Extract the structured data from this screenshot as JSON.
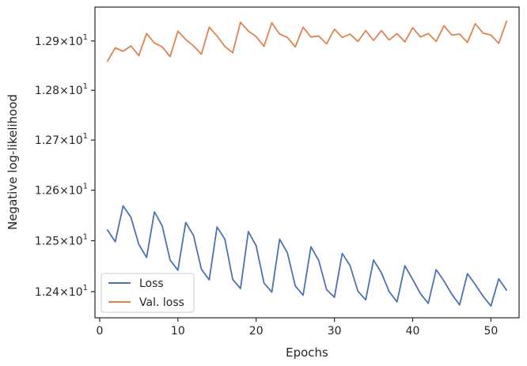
{
  "chart_data": {
    "type": "line",
    "title": "",
    "xlabel": "Epochs",
    "ylabel": "Negative log-likelihood",
    "xlim": [
      -0.6,
      53.6
    ],
    "ylim": [
      12.349,
      12.969
    ],
    "y_scale": "log",
    "grid": false,
    "legend_position": "lower-left",
    "x_ticks": [
      {
        "value": 0,
        "label": "0"
      },
      {
        "value": 10,
        "label": "10"
      },
      {
        "value": 20,
        "label": "20"
      },
      {
        "value": 30,
        "label": "30"
      },
      {
        "value": 40,
        "label": "40"
      },
      {
        "value": 50,
        "label": "50"
      }
    ],
    "y_ticks": [
      {
        "value": 12.4,
        "mantissa": "1.24",
        "base": "10",
        "exp": "1"
      },
      {
        "value": 12.5,
        "mantissa": "1.25",
        "base": "10",
        "exp": "1"
      },
      {
        "value": 12.6,
        "mantissa": "1.26",
        "base": "10",
        "exp": "1"
      },
      {
        "value": 12.7,
        "mantissa": "1.27",
        "base": "10",
        "exp": "1"
      },
      {
        "value": 12.8,
        "mantissa": "1.28",
        "base": "10",
        "exp": "1"
      },
      {
        "value": 12.9,
        "mantissa": "1.29",
        "base": "10",
        "exp": "1"
      }
    ],
    "x": [
      1,
      2,
      3,
      4,
      5,
      6,
      7,
      8,
      9,
      10,
      11,
      12,
      13,
      14,
      15,
      16,
      17,
      18,
      19,
      20,
      21,
      22,
      23,
      24,
      25,
      26,
      27,
      28,
      29,
      30,
      31,
      32,
      33,
      34,
      35,
      36,
      37,
      38,
      39,
      40,
      41,
      42,
      43,
      44,
      45,
      46,
      47,
      48,
      49,
      50,
      51,
      52
    ],
    "series": [
      {
        "name": "Loss",
        "color": "#4c72b0",
        "values": [
          12.521,
          12.498,
          12.569,
          12.546,
          12.493,
          12.467,
          12.557,
          12.529,
          12.462,
          12.442,
          12.536,
          12.51,
          12.444,
          12.423,
          12.527,
          12.503,
          12.424,
          12.406,
          12.518,
          12.49,
          12.417,
          12.399,
          12.503,
          12.476,
          12.411,
          12.393,
          12.488,
          12.461,
          12.404,
          12.389,
          12.475,
          12.451,
          12.401,
          12.384,
          12.462,
          12.437,
          12.4,
          12.38,
          12.451,
          12.424,
          12.396,
          12.377,
          12.443,
          12.421,
          12.395,
          12.374,
          12.435,
          12.414,
          12.391,
          12.372,
          12.425,
          12.403
        ]
      },
      {
        "name": "Val. loss",
        "color": "#dd8452",
        "values": [
          12.859,
          12.886,
          12.879,
          12.89,
          12.87,
          12.915,
          12.896,
          12.888,
          12.868,
          12.92,
          12.903,
          12.89,
          12.873,
          12.928,
          12.91,
          12.889,
          12.876,
          12.938,
          12.92,
          12.909,
          12.889,
          12.937,
          12.914,
          12.907,
          12.888,
          12.928,
          12.908,
          12.91,
          12.894,
          12.924,
          12.907,
          12.914,
          12.899,
          12.921,
          12.901,
          12.921,
          12.902,
          12.915,
          12.898,
          12.927,
          12.908,
          12.915,
          12.899,
          12.931,
          12.912,
          12.914,
          12.897,
          12.935,
          12.916,
          12.912,
          12.895,
          12.94
        ]
      }
    ]
  }
}
